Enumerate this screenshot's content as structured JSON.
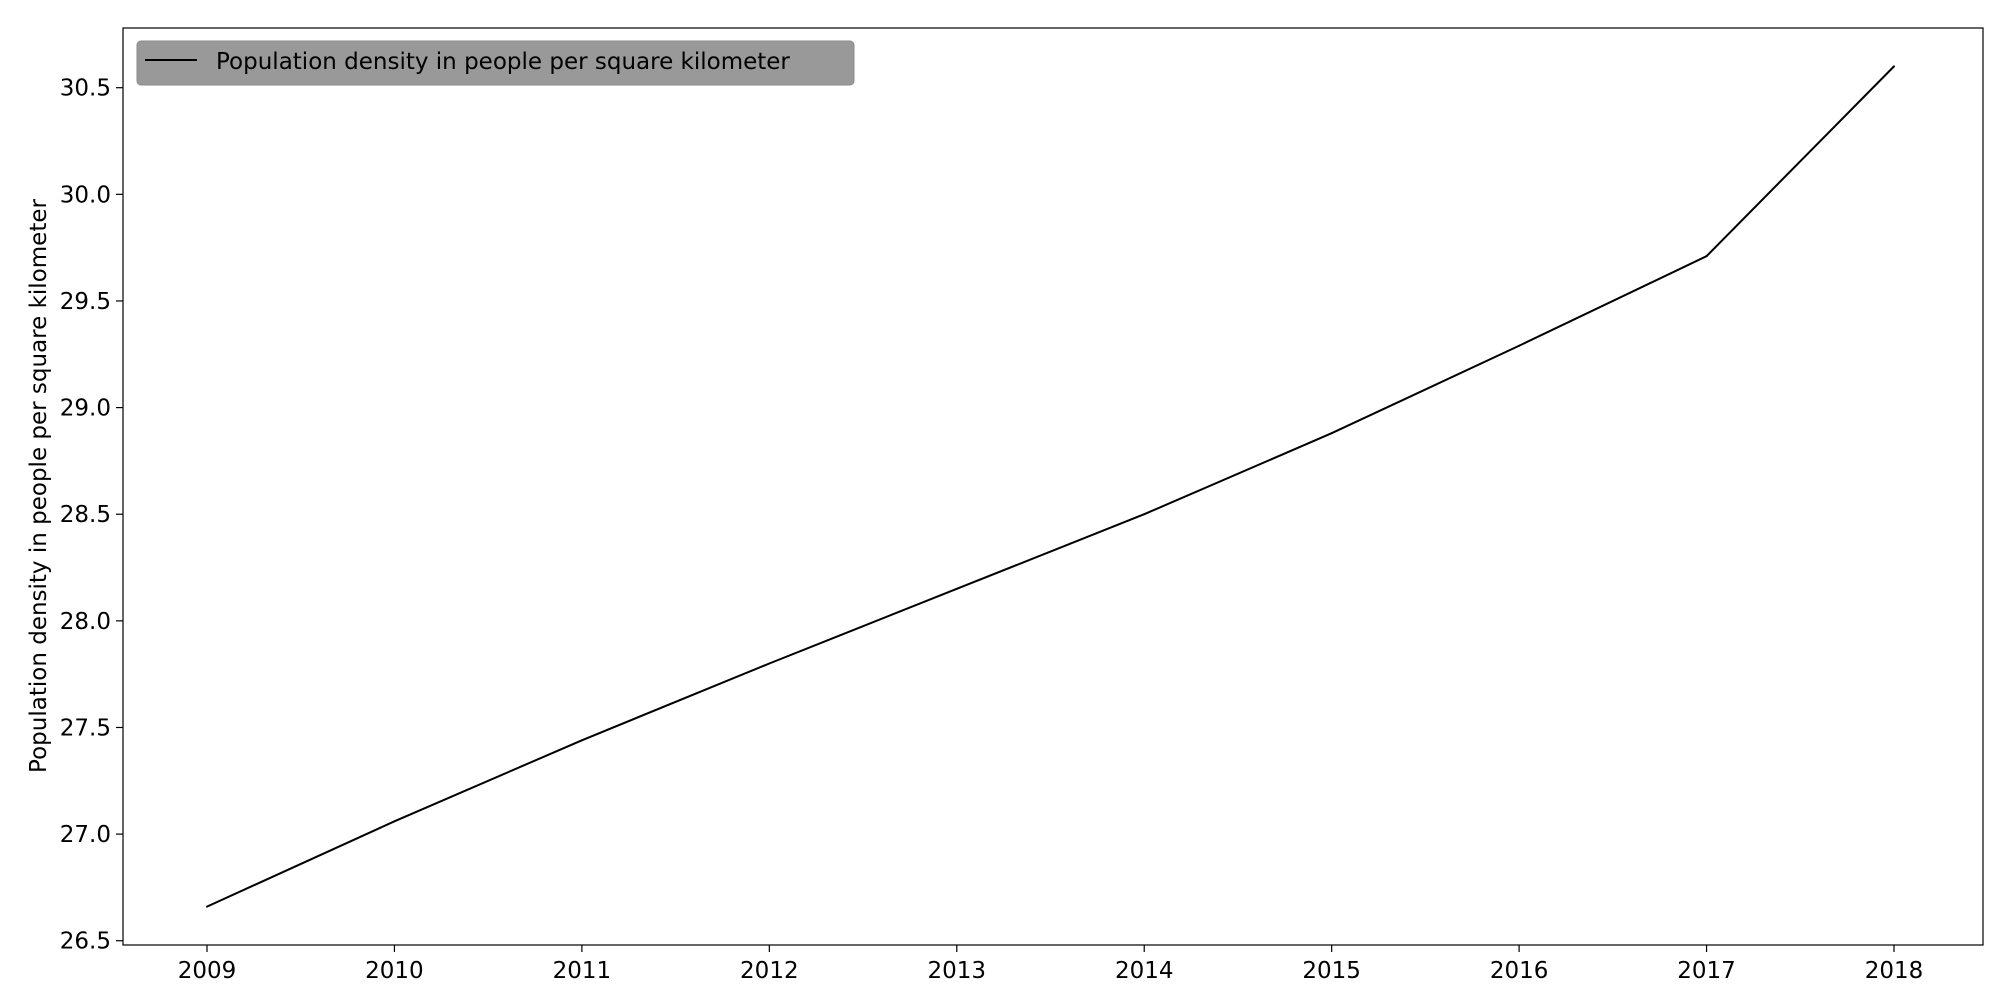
{
  "chart_data": {
    "type": "line",
    "title": "",
    "xlabel": "",
    "ylabel": "Population density in people per square kilometer",
    "x": [
      "2009",
      "2010",
      "2011",
      "2012",
      "2013",
      "2014",
      "2015",
      "2016",
      "2017",
      "2018"
    ],
    "series": [
      {
        "name": "Population density in people per square kilometer",
        "color": "#000000",
        "values": [
          26.66,
          27.06,
          27.44,
          27.8,
          28.15,
          28.5,
          28.88,
          29.29,
          29.71,
          30.6
        ]
      }
    ],
    "xticks": [
      "2009",
      "2010",
      "2011",
      "2012",
      "2013",
      "2014",
      "2015",
      "2016",
      "2017",
      "2018"
    ],
    "yticks": [
      "26.5",
      "27.0",
      "27.5",
      "28.0",
      "28.5",
      "29.0",
      "29.5",
      "30.0",
      "30.5"
    ],
    "ylim": [
      26.48,
      30.78
    ],
    "grid": false,
    "legend_position": "upper-left",
    "legend_background": "#999999"
  }
}
